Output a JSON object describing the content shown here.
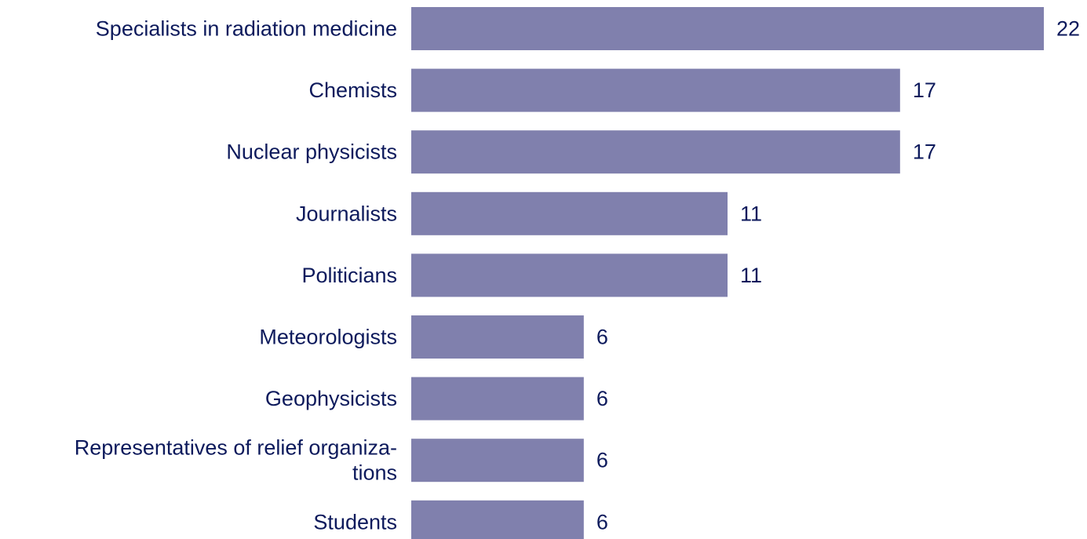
{
  "chart_data": {
    "type": "bar",
    "orientation": "horizontal",
    "categories": [
      [
        "Specialists in radiation medicine"
      ],
      [
        "Chemists"
      ],
      [
        "Nuclear physicists"
      ],
      [
        "Journalists"
      ],
      [
        "Politicians"
      ],
      [
        "Meteorologists"
      ],
      [
        "Geophysicists"
      ],
      [
        "Representatives of relief organiza-",
        "tions"
      ],
      [
        "Students"
      ]
    ],
    "values": [
      22,
      17,
      17,
      11,
      11,
      6,
      6,
      6,
      6
    ],
    "value_labels": [
      "22",
      "17",
      "17",
      "11",
      "11",
      "6",
      "6",
      "6",
      "6"
    ],
    "xlim": [
      0,
      22
    ],
    "grid": false,
    "bar_color": "#8080ad",
    "text_color": "#0d1a5c"
  }
}
